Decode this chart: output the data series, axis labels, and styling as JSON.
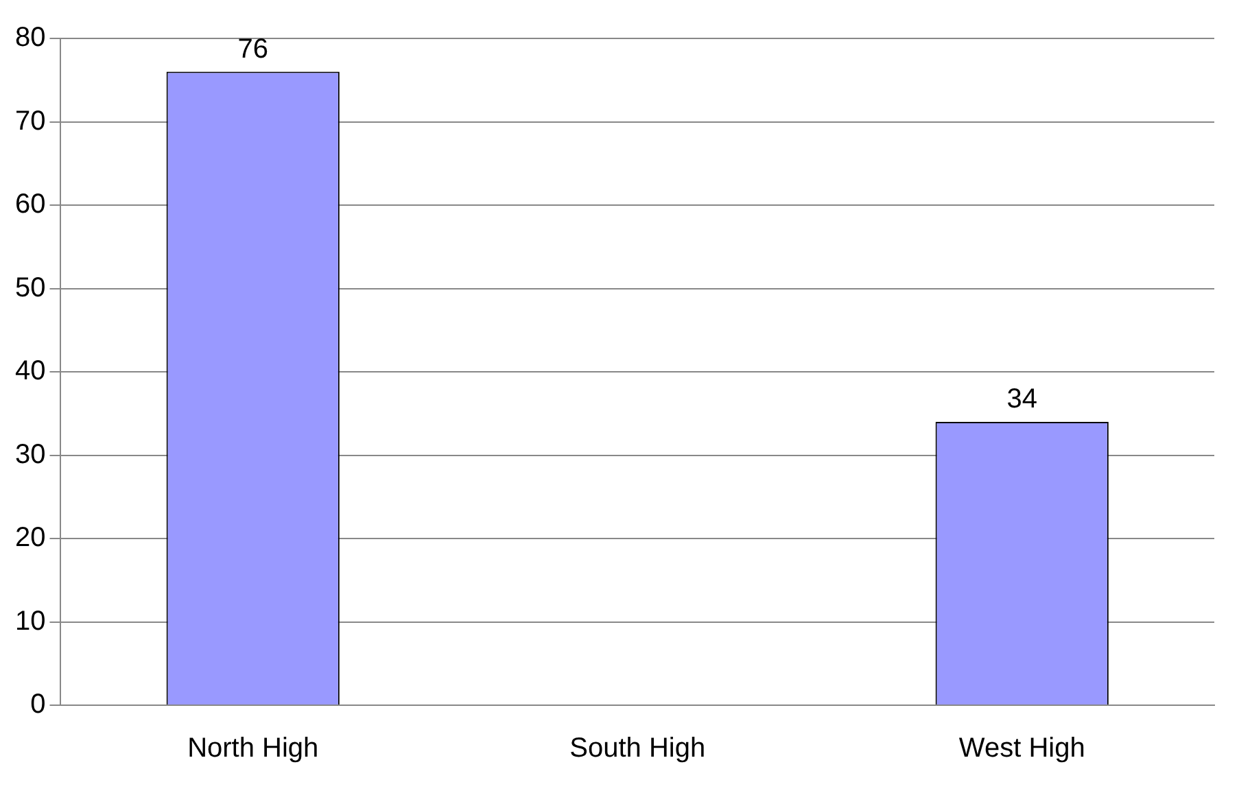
{
  "chart_data": {
    "type": "bar",
    "categories": [
      "North High",
      "South High",
      "West High"
    ],
    "values": [
      76,
      null,
      34
    ],
    "color": "#9999ff",
    "ylim": [
      0,
      80
    ],
    "yticks": [
      0,
      10,
      20,
      30,
      40,
      50,
      60,
      70,
      80
    ],
    "grid": "y",
    "data_labels": true
  }
}
